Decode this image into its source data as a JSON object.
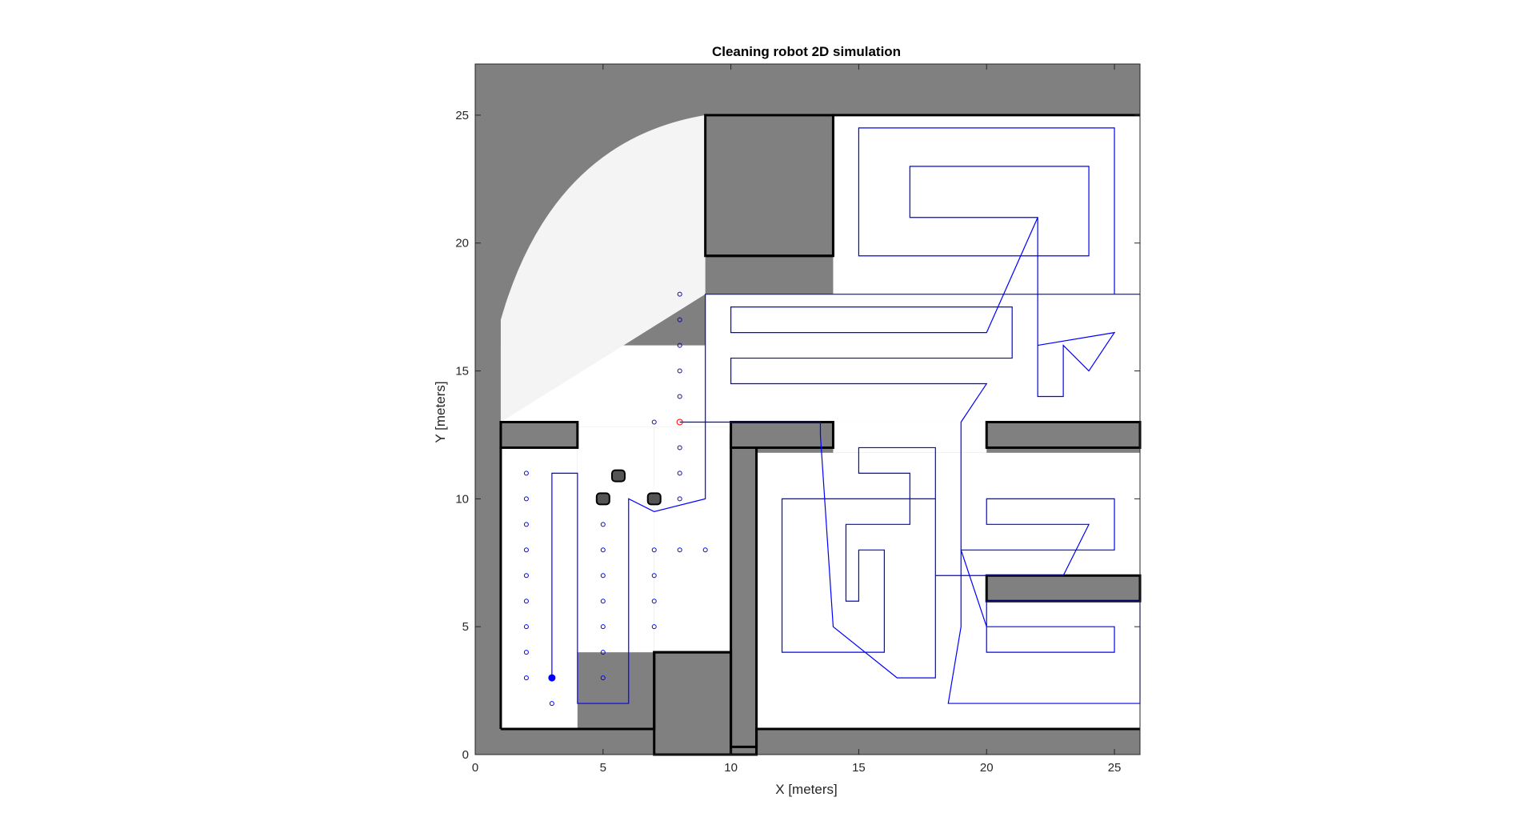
{
  "chart_data": {
    "type": "map",
    "title": "Cleaning robot 2D simulation",
    "xlabel": "X [meters]",
    "ylabel": "Y [meters]",
    "xlim": [
      0,
      26
    ],
    "ylim": [
      0,
      27
    ],
    "xticks": [
      "0",
      "5",
      "10",
      "15",
      "20",
      "25"
    ],
    "yticks": [
      "0",
      "5",
      "10",
      "15",
      "20",
      "25"
    ],
    "colors": {
      "unknown": "#808080",
      "free": "#ffffff",
      "wall": "#000000",
      "path": "#0000ff",
      "waypoint": "#0000ff",
      "target": "#ff0000"
    },
    "free_space": [
      {
        "x0": 1,
        "x1": 4,
        "y0": 1,
        "y1": 12.8
      },
      {
        "x0": 4,
        "x1": 7,
        "y0": 4,
        "y1": 12.8
      },
      {
        "x0": 7,
        "x1": 10,
        "y0": 4,
        "y1": 10.5
      },
      {
        "x0": 7,
        "x1": 10,
        "y0": 8,
        "y1": 12.8
      },
      {
        "x0": 10,
        "x1": 14,
        "y0": 13,
        "y1": 18
      },
      {
        "x0": 1,
        "x1": 10,
        "y0": 12.8,
        "y1": 16
      },
      {
        "x0": 9,
        "x1": 26,
        "y0": 13,
        "y1": 18
      },
      {
        "x0": 14,
        "x1": 26,
        "y0": 18,
        "y1": 25
      },
      {
        "x0": 11,
        "x1": 26,
        "y0": 1,
        "y1": 11.8
      },
      {
        "x0": 14,
        "x1": 20,
        "y0": 11.8,
        "y1": 13
      },
      {
        "x0": 10.5,
        "x1": 11,
        "y0": 1.5,
        "y1": 12.5
      }
    ],
    "obstacles": [
      {
        "x0": 9,
        "x1": 14,
        "y0": 19.5,
        "y1": 25
      },
      {
        "x0": 1,
        "x1": 4,
        "y0": 12,
        "y1": 13
      },
      {
        "x0": 7,
        "x1": 10,
        "y0": 0,
        "y1": 4
      },
      {
        "x0": 10,
        "x1": 11,
        "y0": 0,
        "y1": 12.5
      },
      {
        "x0": 10,
        "x1": 14,
        "y0": 12,
        "y1": 13
      },
      {
        "x0": 20,
        "x1": 26,
        "y0": 12,
        "y1": 13
      },
      {
        "x0": 20,
        "x1": 26,
        "y0": 6,
        "y1": 7
      }
    ],
    "pillars": [
      {
        "x": 5.6,
        "y": 10.9
      },
      {
        "x": 5,
        "y": 10
      },
      {
        "x": 7,
        "y": 10
      }
    ],
    "waypoints": [
      [
        2,
        11
      ],
      [
        2,
        10
      ],
      [
        2,
        9
      ],
      [
        2,
        8
      ],
      [
        2,
        7
      ],
      [
        2,
        6
      ],
      [
        2,
        5
      ],
      [
        2,
        4
      ],
      [
        2,
        3
      ],
      [
        3,
        2
      ],
      [
        5,
        9
      ],
      [
        5,
        8
      ],
      [
        5,
        7
      ],
      [
        5,
        6
      ],
      [
        5,
        5
      ],
      [
        5,
        4
      ],
      [
        5,
        3
      ],
      [
        7,
        8
      ],
      [
        7,
        7
      ],
      [
        7,
        6
      ],
      [
        7,
        5
      ],
      [
        7,
        13
      ],
      [
        8,
        18
      ],
      [
        8,
        17
      ],
      [
        8,
        16
      ],
      [
        8,
        15
      ],
      [
        8,
        14
      ],
      [
        8,
        12
      ],
      [
        8,
        11
      ],
      [
        8,
        10
      ],
      [
        8,
        8
      ],
      [
        9,
        8
      ]
    ],
    "start_point": [
      3,
      3
    ],
    "target_point": [
      8,
      13
    ],
    "path": [
      [
        3,
        3
      ],
      [
        3,
        11
      ],
      [
        4,
        11
      ],
      [
        4,
        2
      ],
      [
        6,
        2
      ],
      [
        6,
        10
      ],
      [
        7,
        9.5
      ],
      [
        9,
        10
      ],
      [
        9,
        18
      ],
      [
        26,
        18
      ],
      [
        25,
        18
      ],
      [
        25,
        24.5
      ],
      [
        15,
        24.5
      ],
      [
        15,
        19.5
      ],
      [
        24,
        19.5
      ],
      [
        24,
        23
      ],
      [
        17,
        23
      ],
      [
        17,
        21
      ],
      [
        22,
        21
      ],
      [
        22,
        16
      ],
      [
        25,
        16.5
      ],
      [
        24,
        15
      ],
      [
        23,
        16
      ],
      [
        23,
        14
      ],
      [
        22,
        14
      ],
      [
        22,
        21
      ],
      [
        20,
        16.5
      ],
      [
        10,
        16.5
      ],
      [
        10,
        17.5
      ],
      [
        21,
        17.5
      ],
      [
        21,
        15.5
      ],
      [
        10,
        15.5
      ],
      [
        10,
        14.5
      ],
      [
        20,
        14.5
      ],
      [
        19,
        13
      ],
      [
        19,
        5
      ],
      [
        18.5,
        2
      ],
      [
        26,
        2
      ],
      [
        26,
        6
      ],
      [
        20,
        6
      ],
      [
        20,
        4
      ],
      [
        25,
        4
      ],
      [
        25,
        5
      ],
      [
        20,
        5
      ],
      [
        19,
        8
      ],
      [
        25,
        8
      ],
      [
        25,
        10
      ],
      [
        20,
        10
      ],
      [
        20,
        9
      ],
      [
        24,
        9
      ],
      [
        23,
        7
      ],
      [
        18,
        7
      ],
      [
        18,
        12
      ],
      [
        15,
        12
      ],
      [
        15,
        11
      ],
      [
        17,
        11
      ],
      [
        17,
        9
      ],
      [
        14.5,
        9
      ],
      [
        14.5,
        6
      ],
      [
        15,
        6
      ],
      [
        15,
        8
      ],
      [
        16,
        8
      ],
      [
        16,
        4
      ],
      [
        12,
        4
      ],
      [
        12,
        10
      ],
      [
        18,
        10
      ],
      [
        18,
        3
      ],
      [
        16.5,
        3
      ],
      [
        14,
        5
      ],
      [
        13.5,
        12.5
      ],
      [
        13.5,
        13
      ],
      [
        8,
        13
      ]
    ]
  }
}
